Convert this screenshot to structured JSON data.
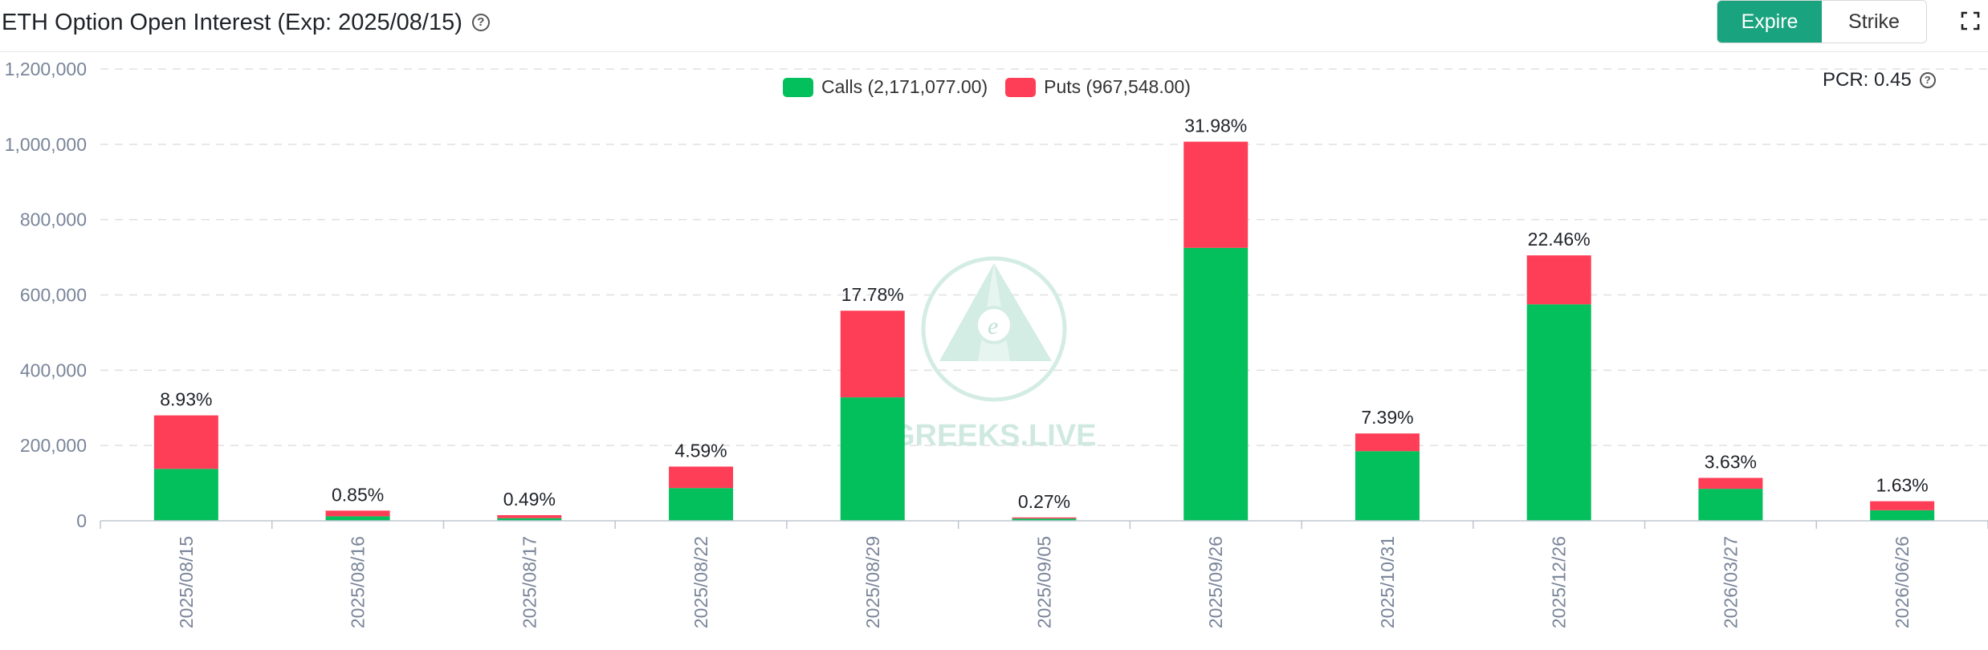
{
  "header": {
    "title": "ETH Option Open Interest (Exp: 2025/08/15)",
    "help_icon": "help-circle-icon",
    "toggle": [
      {
        "label": "Expire",
        "active": true
      },
      {
        "label": "Strike",
        "active": false
      }
    ],
    "fullscreen_icon": "fullscreen-icon"
  },
  "pcr": {
    "label": "PCR: 0.45",
    "icon": "help-circle-icon"
  },
  "watermark": {
    "text": "GREEKS.LIVE"
  },
  "colors": {
    "calls": "#03bf5c",
    "puts": "#fe3e56",
    "active_tab": "#1aa37f"
  },
  "chart_data": {
    "type": "bar",
    "stacked": true,
    "categories": [
      "2025/08/15",
      "2025/08/16",
      "2025/08/17",
      "2025/08/22",
      "2025/08/29",
      "2025/09/05",
      "2025/09/26",
      "2025/10/31",
      "2025/12/26",
      "2026/03/27",
      "2026/06/26"
    ],
    "series": [
      {
        "name": "Calls (2,171,077.00)",
        "color": "#03bf5c",
        "values": [
          138000,
          12000,
          7000,
          87000,
          328000,
          6000,
          725000,
          185000,
          575000,
          85000,
          28000
        ]
      },
      {
        "name": "Puts (967,548.00)",
        "color": "#fe3e56",
        "values": [
          142000,
          15000,
          8000,
          57000,
          230000,
          3000,
          282000,
          47000,
          130000,
          29000,
          24000
        ]
      }
    ],
    "data_labels": [
      "8.93%",
      "0.85%",
      "0.49%",
      "4.59%",
      "17.78%",
      "0.27%",
      "31.98%",
      "7.39%",
      "22.46%",
      "3.63%",
      "1.63%"
    ],
    "y_ticks": [
      "0",
      "200,000",
      "400,000",
      "600,000",
      "800,000",
      "1,000,000",
      "1,200,000"
    ],
    "ylim": [
      0,
      1200000
    ],
    "grid": true,
    "legend_position": "top-center"
  }
}
